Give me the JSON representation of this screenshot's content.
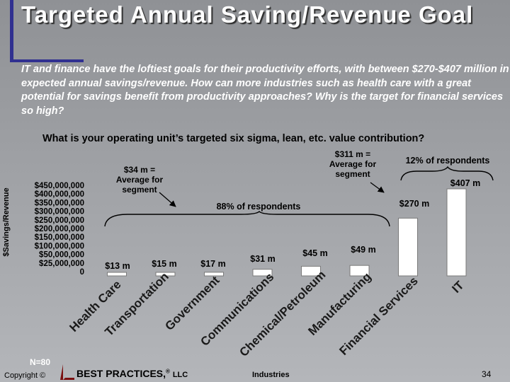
{
  "slide": {
    "title": "Targeted Annual Saving/Revenue Goal",
    "summary": "IT and finance have the loftiest goals for their productivity efforts, with between $270-$407 million in expected annual savings/revenue. How can more industries such as health care with a great potential for savings benefit from productivity approaches? Why is the target for financial services so high?",
    "question": "What is your operating unit’s targeted six sigma, lean, etc. value contribution?",
    "sample_size": "N=80",
    "copyright": "Copyright ©",
    "brand": "BEST PRACTICES,",
    "brand_mark": "®",
    "brand_suffix": "LLC",
    "page_number": "34",
    "colors": {
      "bar_fill": "#ffffff",
      "bar_edge": "#7a7a7a",
      "title_text": "#ffffff",
      "accent": "#303090"
    }
  },
  "chart_data": {
    "type": "bar",
    "xlabel": "Industries",
    "ylabel": "$Savings/Revenue",
    "ylim": [
      0,
      450000000
    ],
    "y_ticks": [
      "$450,000,000",
      "$400,000,000",
      "$350,000,000",
      "$300,000,000",
      "$250,000,000",
      "$200,000,000",
      "$150,000,000",
      "$100,000,000",
      "$50,000,000",
      "$25,000,000",
      "0"
    ],
    "categories": [
      "Health Care",
      "Transportation",
      "Government",
      "Communications",
      "Chemical/Petroleum",
      "Manufacturing",
      "Financial Services",
      "IT"
    ],
    "values": [
      13000000,
      15000000,
      17000000,
      31000000,
      45000000,
      49000000,
      270000000,
      407000000
    ],
    "data_labels": [
      "$13 m",
      "$15 m",
      "$17 m",
      "$31 m",
      "$45 m",
      "$49 m",
      "$270 m",
      "$407 m"
    ],
    "annotations": {
      "avg_low": "$34 m = Average for segment",
      "avg_high": "$311 m = Average for segment",
      "share_low": "88% of respondents",
      "share_high": "12% of respondents"
    },
    "grid": false,
    "legend": "none"
  }
}
